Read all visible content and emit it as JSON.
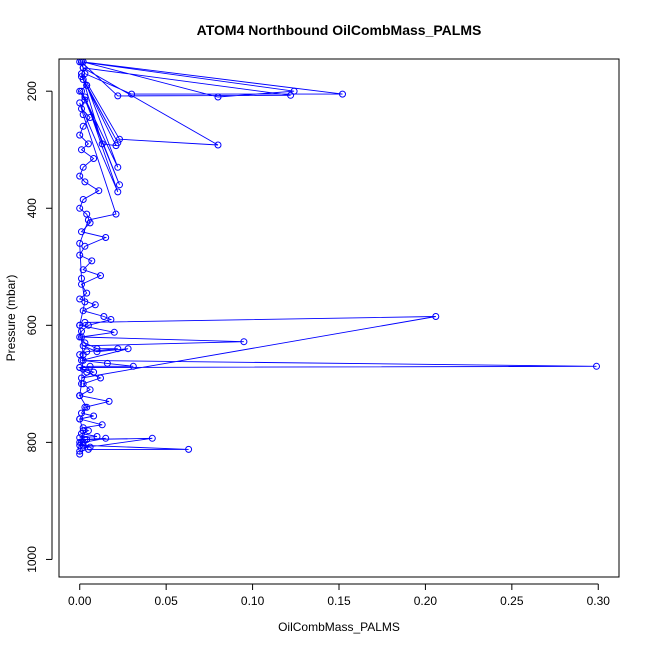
{
  "chart_data": {
    "type": "scatter",
    "title": "ATOM4 Northbound OilCombMass_PALMS",
    "xlabel": "OilCombMass_PALMS",
    "ylabel": "Pressure (mbar)",
    "xlim": [
      -0.012,
      0.312
    ],
    "ylim": [
      1030,
      145
    ],
    "y_reversed": true,
    "grid": false,
    "xticks": [
      0.0,
      0.05,
      0.1,
      0.15,
      0.2,
      0.25,
      0.3
    ],
    "xtick_labels": [
      "0.00",
      "0.05",
      "0.10",
      "0.15",
      "0.20",
      "0.25",
      "0.30"
    ],
    "yticks": [
      200,
      400,
      600,
      800,
      1000
    ],
    "ytick_labels": [
      "200",
      "400",
      "600",
      "800",
      "1000"
    ],
    "series": [
      {
        "color": "#0000ff",
        "marker": "open-circle",
        "connected": true,
        "x": [
          0.0,
          0.002,
          0.001,
          0.004,
          0.0,
          0.003,
          0.001,
          0.006,
          0.002,
          0.0,
          0.005,
          0.001,
          0.008,
          0.002,
          0.0,
          0.003,
          0.011,
          0.002,
          0.0,
          0.004,
          0.006,
          0.001,
          0.015,
          0.003,
          0.0,
          0.007,
          0.002,
          0.012,
          0.001,
          0.004,
          0.0,
          0.009,
          0.002,
          0.014,
          0.018,
          0.005,
          0.001,
          0.0,
          0.003,
          0.01,
          0.022,
          0.004,
          0.0,
          0.002,
          0.016,
          0.031,
          0.006,
          0.0,
          0.002,
          0.008,
          0.001,
          0.206,
          0.003,
          0.0,
          0.02,
          0.001,
          0.095,
          0.002,
          0.01,
          0.028,
          0.001,
          0.299,
          0.0,
          0.004,
          0.012,
          0.002,
          0.006,
          0.0,
          0.017,
          0.003,
          0.001,
          0.008,
          0.0,
          0.013,
          0.002,
          0.005,
          0.001,
          0.01,
          0.0,
          0.003,
          0.015,
          0.002,
          0.0,
          0.006,
          0.001,
          0.042,
          0.004,
          0.0,
          0.002,
          0.063,
          0.005,
          0.0
        ],
        "y": [
          150,
          160,
          175,
          190,
          200,
          215,
          230,
          245,
          260,
          275,
          290,
          300,
          315,
          330,
          345,
          355,
          370,
          385,
          400,
          410,
          425,
          440,
          450,
          465,
          480,
          490,
          505,
          515,
          530,
          545,
          555,
          565,
          575,
          585,
          590,
          600,
          610,
          620,
          630,
          640,
          640,
          645,
          650,
          660,
          665,
          670,
          670,
          672,
          675,
          680,
          690,
          585,
          595,
          600,
          612,
          620,
          628,
          635,
          645,
          640,
          660,
          670,
          672,
          680,
          690,
          700,
          710,
          720,
          730,
          740,
          750,
          755,
          760,
          770,
          775,
          780,
          785,
          790,
          792,
          795,
          793,
          800,
          805,
          808,
          810,
          793,
          795,
          800,
          805,
          812,
          812,
          815
        ]
      },
      {
        "color": "#0000ff",
        "marker": "open-circle",
        "connected": true,
        "x": [
          0.001,
          0.003,
          0.03,
          0.152,
          0.002,
          0.08,
          0.124,
          0.001,
          0.022,
          0.122,
          0.002,
          0.08,
          0.023,
          0.001,
          0.013,
          0.021,
          0.002,
          0.022,
          0.004,
          0.022,
          0.001,
          0.023,
          0.003,
          0.022,
          0.0,
          0.002,
          0.021,
          0.005,
          0.0,
          0.001,
          0.003,
          0.0,
          0.002,
          0.001,
          0.0,
          0.004,
          0.0,
          0.002,
          0.001,
          0.0
        ],
        "y": [
          150,
          170,
          205,
          205,
          150,
          210,
          200,
          150,
          208,
          207,
          160,
          292,
          282,
          170,
          290,
          293,
          180,
          288,
          190,
          330,
          200,
          360,
          210,
          372,
          220,
          240,
          410,
          420,
          460,
          520,
          560,
          600,
          650,
          700,
          720,
          740,
          760,
          780,
          800,
          820
        ]
      }
    ]
  }
}
